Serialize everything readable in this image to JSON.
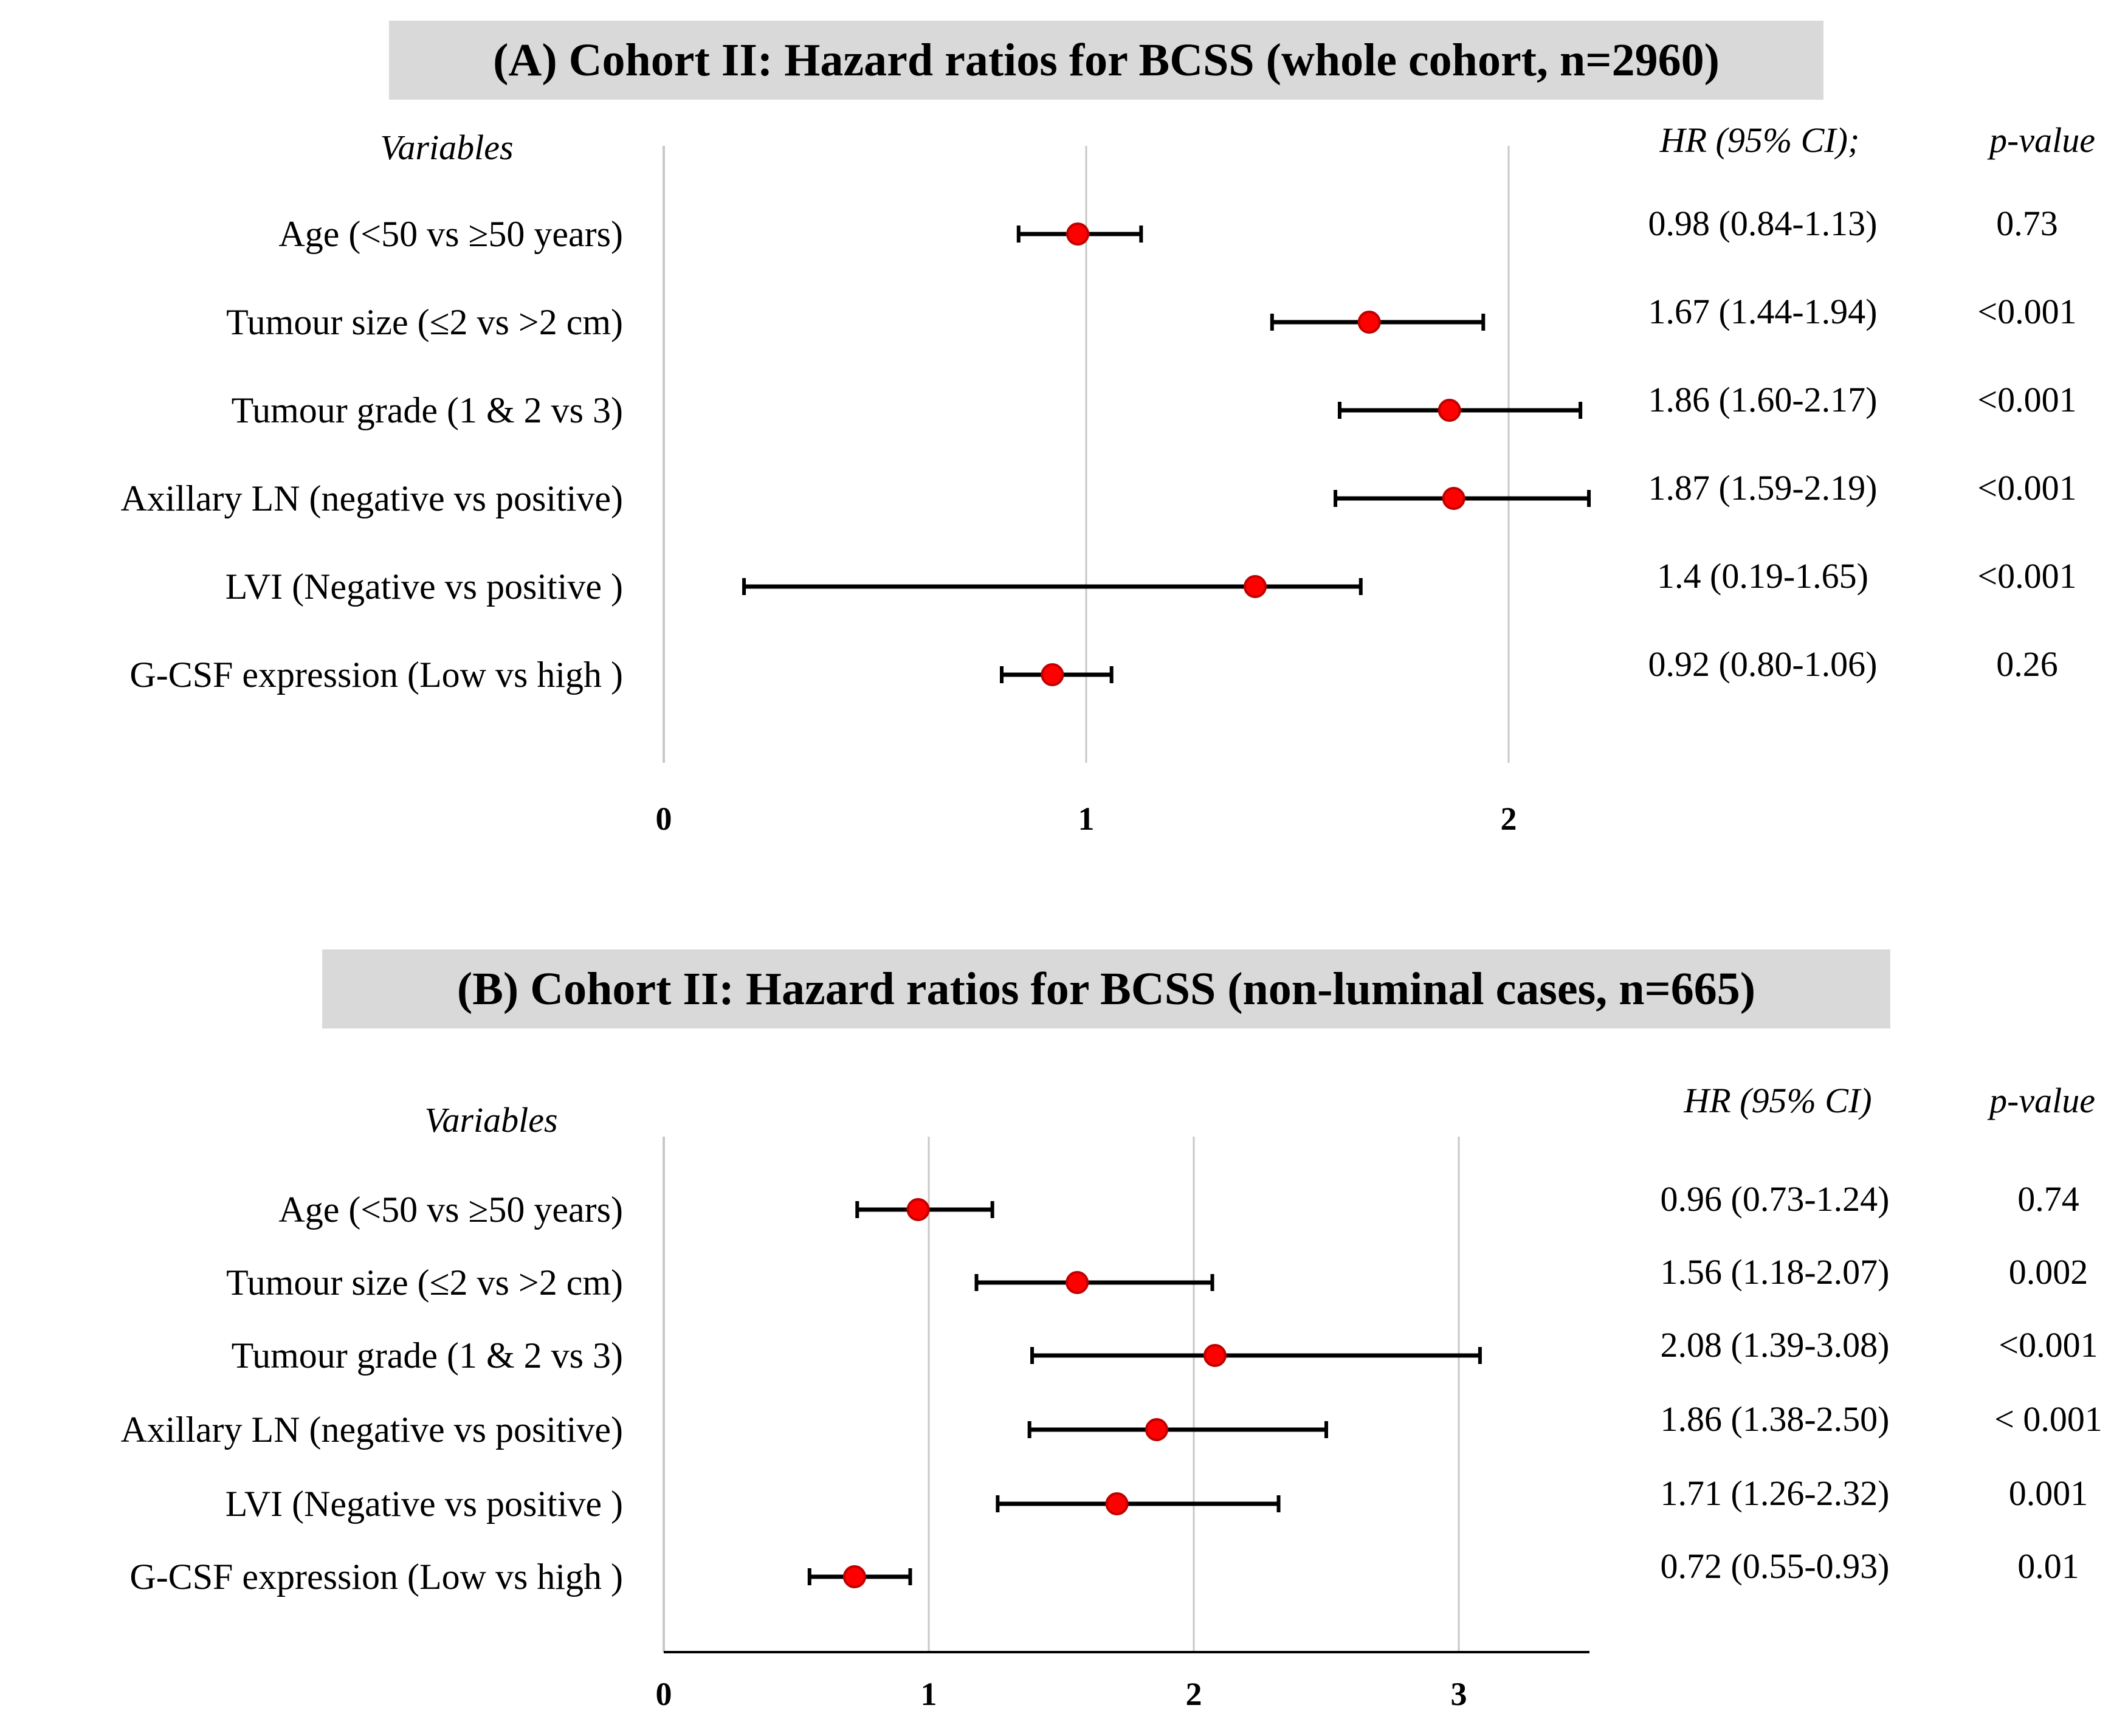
{
  "chart_data": [
    {
      "type": "forest",
      "title": "(A) Cohort II: Hazard ratios for BCSS (whole cohort, n=2960)",
      "variables_header": "Variables",
      "hr_header": "HR (95% CI);",
      "p_header": "p-value",
      "xlim": [
        0,
        2.2
      ],
      "x_ticks": [
        0,
        1,
        2
      ],
      "gridlines": [
        1,
        2
      ],
      "rows": [
        {
          "label": "Age (<50 vs ≥50 years)",
          "hr": 0.98,
          "lo": 0.84,
          "hi": 1.13,
          "hr_text": "0.98 (0.84-1.13)",
          "p": "0.73"
        },
        {
          "label": "Tumour size  (≤2 vs >2 cm)",
          "hr": 1.67,
          "lo": 1.44,
          "hi": 1.94,
          "hr_text": "1.67 (1.44-1.94)",
          "p": "<0.001"
        },
        {
          "label": "Tumour grade  (1 & 2 vs 3)",
          "hr": 1.86,
          "lo": 1.6,
          "hi": 2.17,
          "hr_text": "1.86 (1.60-2.17)",
          "p": "<0.001"
        },
        {
          "label": "Axillary LN (negative vs positive)",
          "hr": 1.87,
          "lo": 1.59,
          "hi": 2.19,
          "hr_text": "1.87 (1.59-2.19)",
          "p": "<0.001"
        },
        {
          "label": "LVI (Negative  vs positive )",
          "hr": 1.4,
          "lo": 0.19,
          "hi": 1.65,
          "hr_text": "1.4 (0.19-1.65)",
          "p": "<0.001"
        },
        {
          "label": "G-CSF expression (Low vs high )",
          "hr": 0.92,
          "lo": 0.8,
          "hi": 1.06,
          "hr_text": "0.92 (0.80-1.06)",
          "p": "0.26"
        }
      ]
    },
    {
      "type": "forest",
      "title": "(B) Cohort II: Hazard ratios for BCSS (non-luminal cases, n=665)",
      "variables_header": "Variables",
      "hr_header": "HR (95% CI)",
      "p_header": "p-value",
      "xlim": [
        0,
        3.5
      ],
      "x_ticks": [
        0,
        1,
        2,
        3
      ],
      "gridlines": [
        1,
        2,
        3
      ],
      "rows": [
        {
          "label": "Age (<50 vs ≥50 years)",
          "hr": 0.96,
          "lo": 0.73,
          "hi": 1.24,
          "hr_text": "0.96 (0.73-1.24)",
          "p": "0.74"
        },
        {
          "label": "Tumour size  (≤2 vs >2 cm)",
          "hr": 1.56,
          "lo": 1.18,
          "hi": 2.07,
          "hr_text": "1.56 (1.18-2.07)",
          "p": "0.002"
        },
        {
          "label": "Tumour grade   (1 & 2 vs 3)",
          "hr": 2.08,
          "lo": 1.39,
          "hi": 3.08,
          "hr_text": "2.08 (1.39-3.08)",
          "p": "<0.001"
        },
        {
          "label": "Axillary LN (negative vs positive)",
          "hr": 1.86,
          "lo": 1.38,
          "hi": 2.5,
          "hr_text": "1.86 (1.38-2.50)",
          "p": "< 0.001"
        },
        {
          "label": "LVI (Negative  vs positive )",
          "hr": 1.71,
          "lo": 1.26,
          "hi": 2.32,
          "hr_text": "1.71 (1.26-2.32)",
          "p": "0.001"
        },
        {
          "label": "G-CSF expression (Low vs high )",
          "hr": 0.72,
          "lo": 0.55,
          "hi": 0.93,
          "hr_text": "0.72 (0.55-0.93)",
          "p": "0.01"
        }
      ]
    }
  ],
  "colors": {
    "point": "#ff0000",
    "point_edge": "#c00000",
    "ci_line": "#000000",
    "title_bg": "#d9d9d9",
    "grid": "#c8c8c8"
  }
}
